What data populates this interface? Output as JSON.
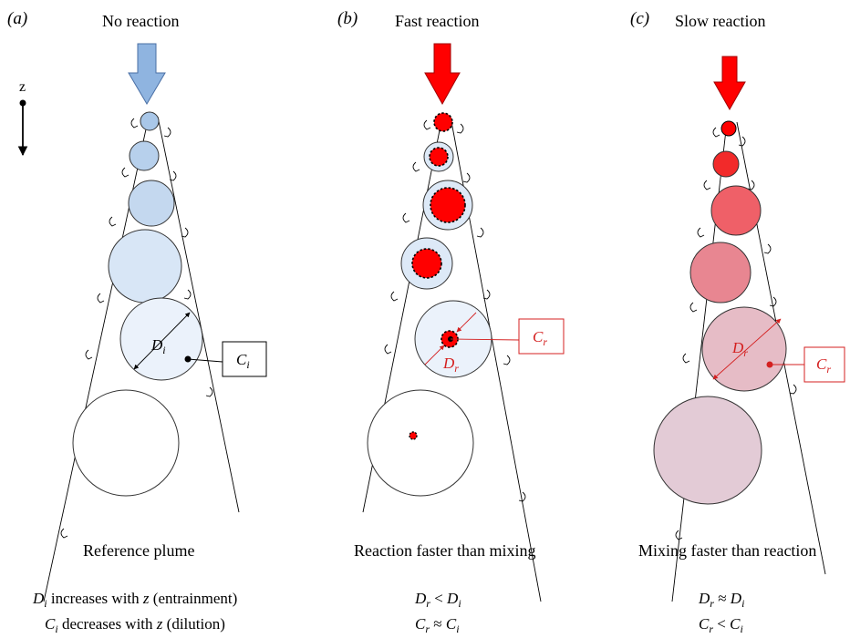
{
  "axis": {
    "label": "z"
  },
  "panels": [
    {
      "letter": "(a)",
      "title": "No reaction",
      "caption": "Reference plume",
      "relations": [
        "increases with z (entrainment)",
        "decreases with z (dilution)"
      ],
      "diameter_label": {
        "main": "D",
        "sub": "i"
      },
      "conc_label": {
        "main": "C",
        "sub": "i"
      },
      "accent_color": "#000000",
      "arrow_color": "#8fb4e0"
    },
    {
      "letter": "(b)",
      "title": "Fast reaction",
      "caption": "Reaction faster than mixing",
      "relations": [
        "D_r < D_i",
        "C_r ≈ C_i"
      ],
      "diameter_label": {
        "main": "D",
        "sub": "r"
      },
      "conc_label": {
        "main": "C",
        "sub": "r"
      },
      "accent_color": "#d42020",
      "arrow_color": "#ff0000"
    },
    {
      "letter": "(c)",
      "title": "Slow reaction",
      "caption": "Mixing faster than reaction",
      "relations": [
        "D_r ≈ D_i",
        "C_r < C_i"
      ],
      "diameter_label": {
        "main": "D",
        "sub": "r"
      },
      "conc_label": {
        "main": "C",
        "sub": "r"
      },
      "accent_color": "#d42020",
      "arrow_color": "#ff0000"
    }
  ],
  "relation_text": {
    "a1_main": "D",
    "a1_sub": "i",
    "a1_rest": " increases with ",
    "a1_z": "z",
    "a1_end": " (entrainment)",
    "a2_main": "C",
    "a2_sub": "i",
    "a2_rest": " decreases with ",
    "a2_z": "z",
    "a2_end": " (dilution)",
    "b1": "D_r < D_i",
    "b2": "C_r ≈ C_i",
    "c1": "D_r ≈ D_i",
    "c2": "C_r < C_i"
  }
}
